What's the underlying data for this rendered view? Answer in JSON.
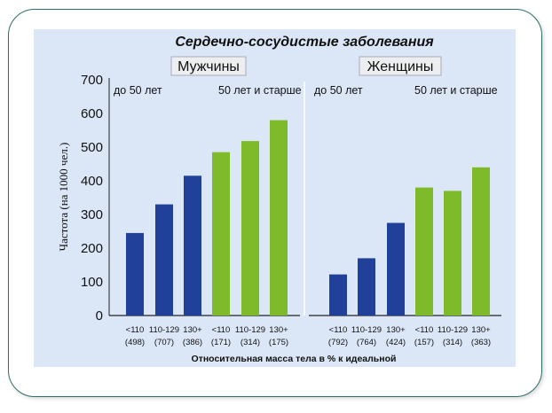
{
  "chart_data": {
    "type": "bar",
    "title": "Сердечно-сосудистые заболевания",
    "ylabel": "Частота (на 1000 чел.)",
    "xlabel": "Относительная масса тела в % к идеальной",
    "ylim": [
      0,
      700
    ],
    "yticks": [
      "0",
      "100",
      "200",
      "300",
      "400",
      "500",
      "600",
      "700"
    ],
    "groups": [
      {
        "name": "Мужчины",
        "subgroups": [
          "до 50 лет",
          "50 лет и старше"
        ],
        "bars": [
          {
            "cat": "<110",
            "n": "(498)",
            "value": 245,
            "age": "до 50 лет"
          },
          {
            "cat": "110-129",
            "n": "(707)",
            "value": 330,
            "age": "до 50 лет"
          },
          {
            "cat": "130+",
            "n": "(386)",
            "value": 415,
            "age": "до 50 лет"
          },
          {
            "cat": "<110",
            "n": "(171)",
            "value": 485,
            "age": "50 лет и старше"
          },
          {
            "cat": "110-129",
            "n": "(314)",
            "value": 518,
            "age": "50 лет и старше"
          },
          {
            "cat": "130+",
            "n": "(175)",
            "value": 580,
            "age": "50 лет и старше"
          }
        ]
      },
      {
        "name": "Женщины",
        "subgroups": [
          "до 50 лет",
          "50 лет и старше"
        ],
        "bars": [
          {
            "cat": "<110",
            "n": "(792)",
            "value": 122,
            "age": "до 50 лет"
          },
          {
            "cat": "110-129",
            "n": "(764)",
            "value": 170,
            "age": "до 50 лет"
          },
          {
            "cat": "130+",
            "n": "(424)",
            "value": 275,
            "age": "до 50 лет"
          },
          {
            "cat": "<110",
            "n": "(157)",
            "value": 380,
            "age": "50 лет и старше"
          },
          {
            "cat": "110-129",
            "n": "(314)",
            "value": 370,
            "age": "50 лет и старше"
          },
          {
            "cat": "130+",
            "n": "(363)",
            "value": 440,
            "age": "50 лет и старше"
          }
        ]
      }
    ],
    "colors": {
      "до 50 лет": "#21409a",
      "50 лет и старше": "#7fba2a"
    },
    "grid": false
  }
}
